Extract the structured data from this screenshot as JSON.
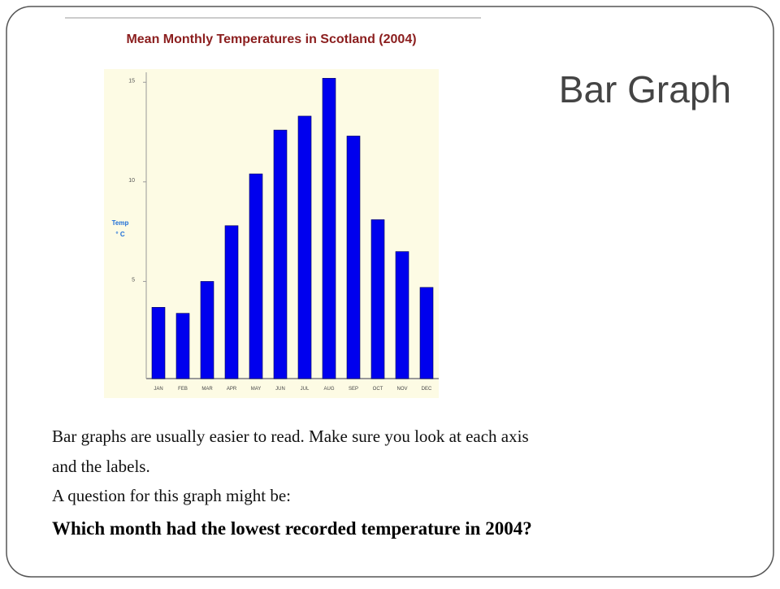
{
  "slide": {
    "title": "Bar Graph",
    "body": [
      "Bar graphs are usually easier to read. Make sure you look at each axis",
      "and the labels.",
      "A question for this graph might be:"
    ],
    "question": "Which month had the lowest recorded temperature in 2004?"
  },
  "chart_data": {
    "type": "bar",
    "title": "Mean Monthly Temperatures in Scotland (2004)",
    "ylabel": [
      "Temp",
      "° C"
    ],
    "categories": [
      "JAN",
      "FEB",
      "MAR",
      "APR",
      "MAY",
      "JUN",
      "JUL",
      "AUG",
      "SEP",
      "OCT",
      "NOV",
      "DEC"
    ],
    "values": [
      3.7,
      3.4,
      5.0,
      7.8,
      10.4,
      12.6,
      13.3,
      15.2,
      12.3,
      8.1,
      6.5,
      4.7
    ],
    "color": "#0000ee",
    "ylim": [
      0,
      15.5
    ],
    "yticks": [
      5,
      10,
      15
    ],
    "grid": false
  }
}
